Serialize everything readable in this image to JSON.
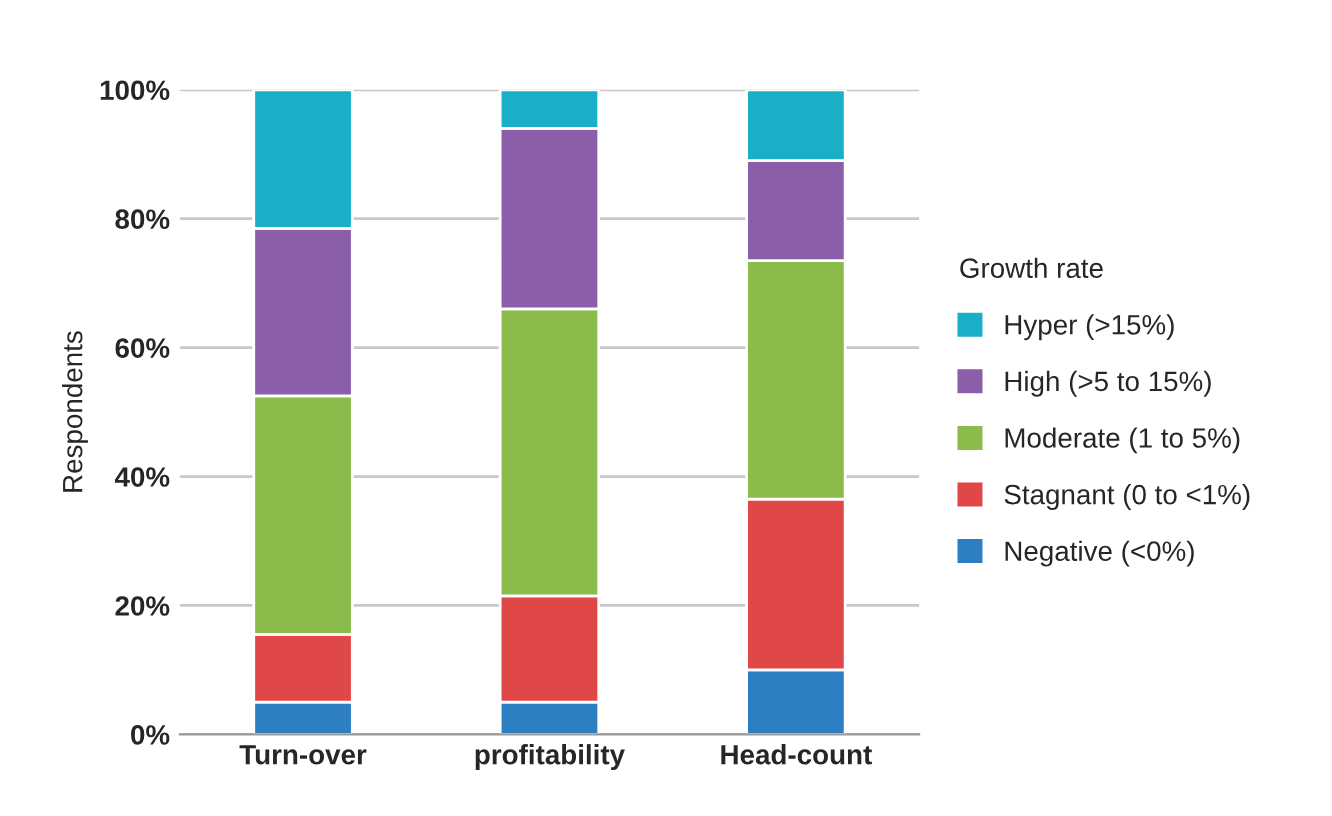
{
  "chart_data": {
    "type": "bar",
    "stacked": true,
    "ylabel": "Respondents",
    "legend_title": "Growth rate",
    "categories": [
      "Turn-over",
      "profitability",
      "Head-count"
    ],
    "series": [
      {
        "name": "Negative (<0%)",
        "color": "#2e7fc1",
        "values": [
          5,
          5,
          10
        ]
      },
      {
        "name": "Stagnant (0 to <1%)",
        "color": "#e04848",
        "values": [
          10.5,
          16.5,
          26.5
        ]
      },
      {
        "name": "Moderate (1 to 5%)",
        "color": "#8bbb4a",
        "values": [
          37,
          44.5,
          37
        ]
      },
      {
        "name": "High (>5 to 15%)",
        "color": "#8a5ea8",
        "values": [
          26,
          28,
          15.5
        ]
      },
      {
        "name": "Hyper (>15%)",
        "color": "#1aafc9",
        "values": [
          21.5,
          6,
          11
        ]
      }
    ],
    "ylim": [
      0,
      100
    ],
    "yticks": [
      {
        "value": 0,
        "label": "0%"
      },
      {
        "value": 20,
        "label": "20%"
      },
      {
        "value": 40,
        "label": "40%"
      },
      {
        "value": 60,
        "label": "60%"
      },
      {
        "value": 80,
        "label": "80%"
      },
      {
        "value": 100,
        "label": "100%"
      }
    ],
    "grid": "y",
    "legend": "right"
  }
}
